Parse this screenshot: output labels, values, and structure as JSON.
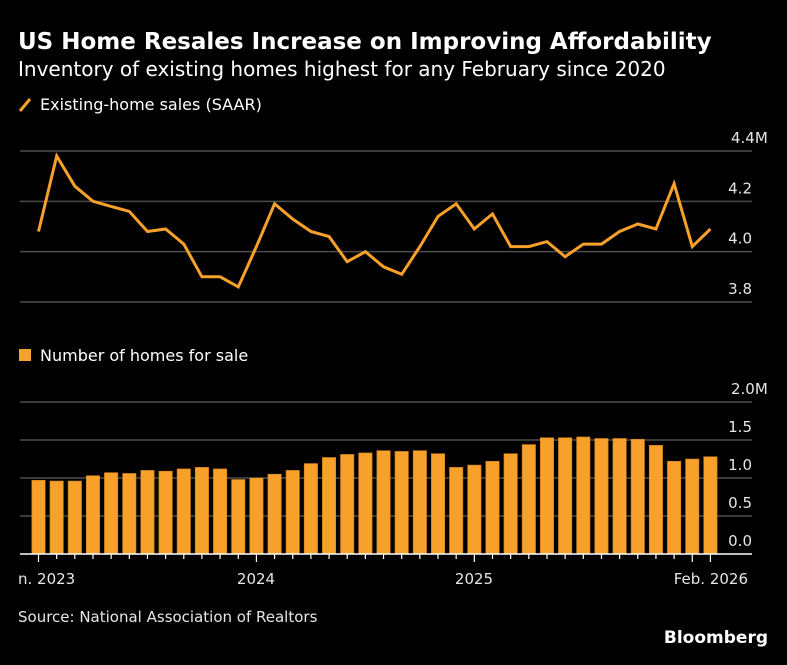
{
  "title": "US Home Resales Increase on Improving Affordability",
  "subtitle": "Inventory of existing homes highest for any February since 2020",
  "source": "Source: National Association of Realtors",
  "brand": "Bloomberg",
  "colors": {
    "series": "#f7a12b",
    "grid": "#4d4d4d",
    "background": "#000000"
  },
  "x_labels": [
    "n. 2023",
    "2024",
    "2025",
    "Feb. 2026"
  ],
  "chart_data": [
    {
      "type": "line",
      "legend": "Existing-home sales (SAAR)",
      "legend_icon": "line-swatch-icon",
      "x": [
        "2023-01",
        "2023-02",
        "2023-03",
        "2023-04",
        "2023-05",
        "2023-06",
        "2023-07",
        "2023-08",
        "2023-09",
        "2023-10",
        "2023-11",
        "2023-12",
        "2024-01",
        "2024-02",
        "2024-03",
        "2024-04",
        "2024-05",
        "2024-06",
        "2024-07",
        "2024-08",
        "2024-09",
        "2024-10",
        "2024-11",
        "2024-12",
        "2025-01",
        "2025-02",
        "2025-03",
        "2025-04",
        "2025-05",
        "2025-06",
        "2025-07",
        "2025-08",
        "2025-09",
        "2025-10",
        "2025-11",
        "2025-12",
        "2026-01",
        "2026-02"
      ],
      "values": [
        4.08,
        4.38,
        4.26,
        4.2,
        4.18,
        4.16,
        4.08,
        4.09,
        4.03,
        3.9,
        3.9,
        3.86,
        4.02,
        4.19,
        4.13,
        4.08,
        4.06,
        3.96,
        4.0,
        3.94,
        3.91,
        4.02,
        4.14,
        4.19,
        4.09,
        4.15,
        4.02,
        4.02,
        4.04,
        3.98,
        4.03,
        4.03,
        4.08,
        4.11,
        4.09,
        4.27,
        4.02,
        4.09
      ],
      "ylim": [
        3.8,
        4.4
      ],
      "yticks": [
        {
          "v": 4.4,
          "label": "4.4M"
        },
        {
          "v": 4.2,
          "label": "4.2"
        },
        {
          "v": 4.0,
          "label": "4.0"
        },
        {
          "v": 3.8,
          "label": "3.8"
        }
      ],
      "grid": true
    },
    {
      "type": "bar",
      "legend": "Number of homes for sale",
      "legend_icon": "square-swatch-icon",
      "x": [
        "2023-01",
        "2023-02",
        "2023-03",
        "2023-04",
        "2023-05",
        "2023-06",
        "2023-07",
        "2023-08",
        "2023-09",
        "2023-10",
        "2023-11",
        "2023-12",
        "2024-01",
        "2024-02",
        "2024-03",
        "2024-04",
        "2024-05",
        "2024-06",
        "2024-07",
        "2024-08",
        "2024-09",
        "2024-10",
        "2024-11",
        "2024-12",
        "2025-01",
        "2025-02",
        "2025-03",
        "2025-04",
        "2025-05",
        "2025-06",
        "2025-07",
        "2025-08",
        "2025-09",
        "2025-10",
        "2025-11",
        "2025-12",
        "2026-01",
        "2026-02"
      ],
      "values": [
        0.97,
        0.96,
        0.96,
        1.03,
        1.07,
        1.06,
        1.1,
        1.09,
        1.12,
        1.14,
        1.12,
        0.98,
        1.0,
        1.05,
        1.1,
        1.19,
        1.27,
        1.31,
        1.33,
        1.36,
        1.35,
        1.36,
        1.32,
        1.14,
        1.17,
        1.22,
        1.32,
        1.44,
        1.53,
        1.53,
        1.54,
        1.52,
        1.52,
        1.51,
        1.43,
        1.22,
        1.25,
        1.28
      ],
      "ylim": [
        0,
        2.0
      ],
      "yticks": [
        {
          "v": 2.0,
          "label": "2.0M"
        },
        {
          "v": 1.5,
          "label": "1.5"
        },
        {
          "v": 1.0,
          "label": "1.0"
        },
        {
          "v": 0.5,
          "label": "0.5"
        },
        {
          "v": 0.0,
          "label": "0.0"
        }
      ],
      "grid": true
    }
  ]
}
